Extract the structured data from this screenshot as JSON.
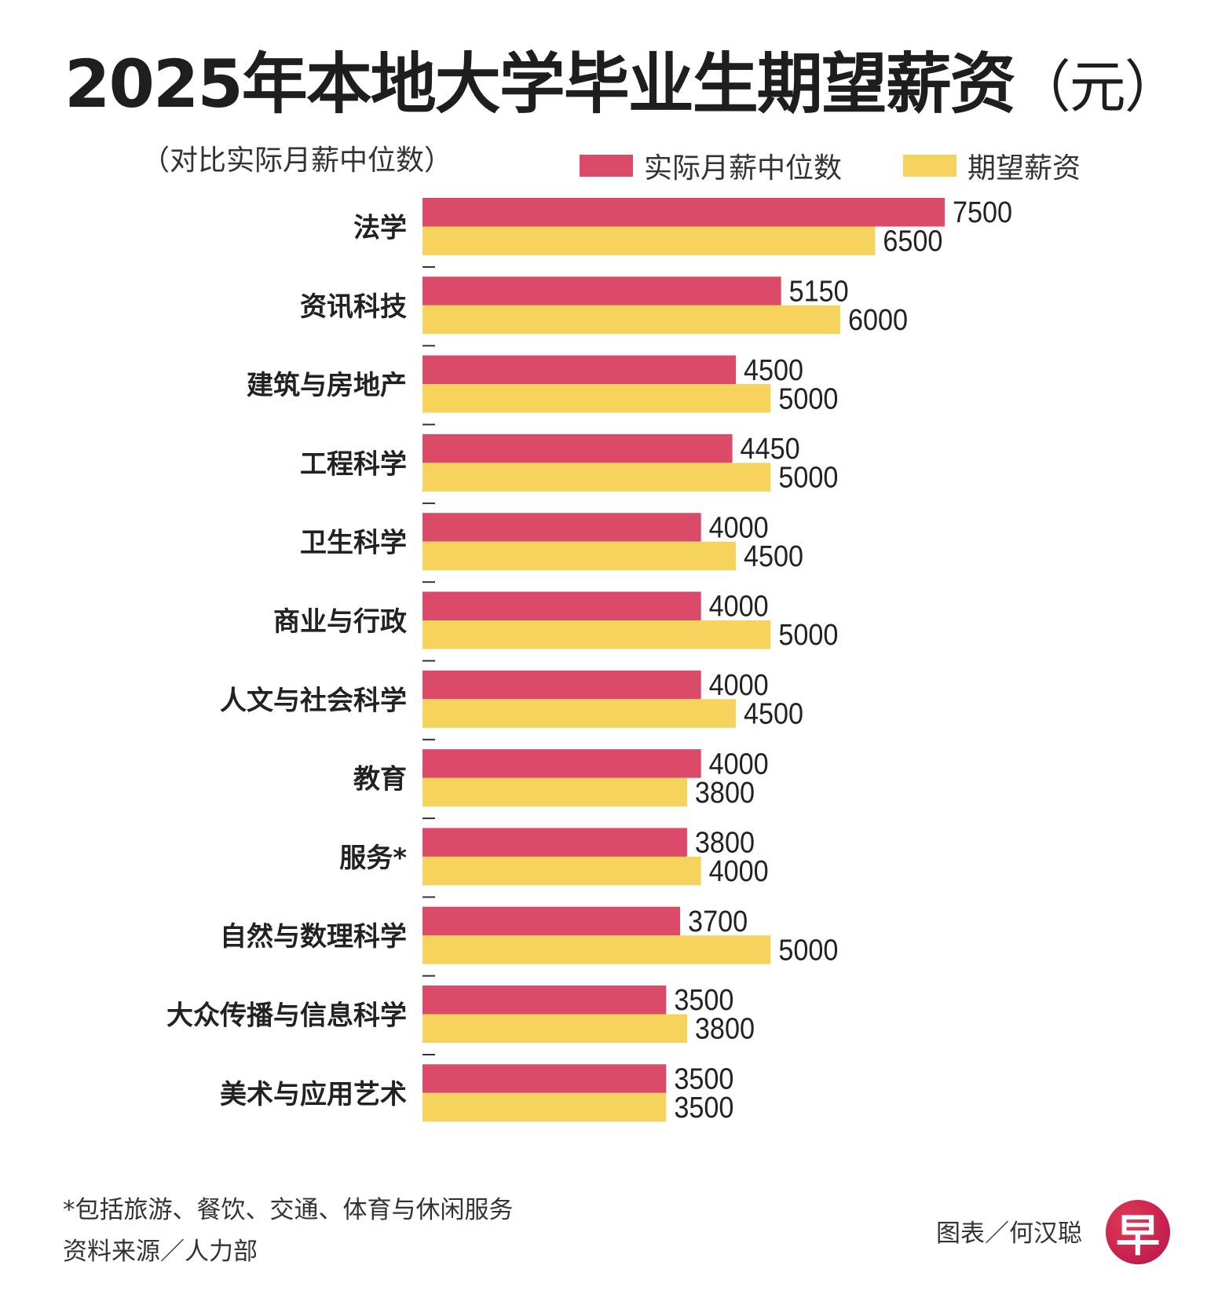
{
  "chart_data": {
    "type": "bar",
    "orientation": "horizontal",
    "title": "2025年本地大学毕业生期望薪资",
    "title_unit": "（元）",
    "subtitle": "（对比实际月薪中位数）",
    "categories": [
      "法学",
      "资讯科技",
      "建筑与房地产",
      "工程科学",
      "卫生科学",
      "商业与行政",
      "人文与社会科学",
      "教育",
      "服务*",
      "自然与数理科学",
      "大众传播与信息科学",
      "美术与应用艺术"
    ],
    "series": [
      {
        "name": "实际月薪中位数",
        "color": "#dc4a6a",
        "values": [
          7500,
          5150,
          4500,
          4450,
          4000,
          4000,
          4000,
          4000,
          3800,
          3700,
          3500,
          3500
        ]
      },
      {
        "name": "期望薪资",
        "color": "#f5d35c",
        "values": [
          6500,
          6000,
          5000,
          5000,
          4500,
          5000,
          4500,
          3800,
          4000,
          5000,
          3800,
          3500
        ]
      }
    ],
    "xlim": [
      0,
      8000
    ],
    "legend_position": "top-right",
    "grid": false
  },
  "footer": {
    "note": "*包括旅游、餐饮、交通、体育与休闲服务",
    "source": "资料来源／人力部",
    "credit": "图表／何汉聪",
    "logo_text": "早"
  }
}
